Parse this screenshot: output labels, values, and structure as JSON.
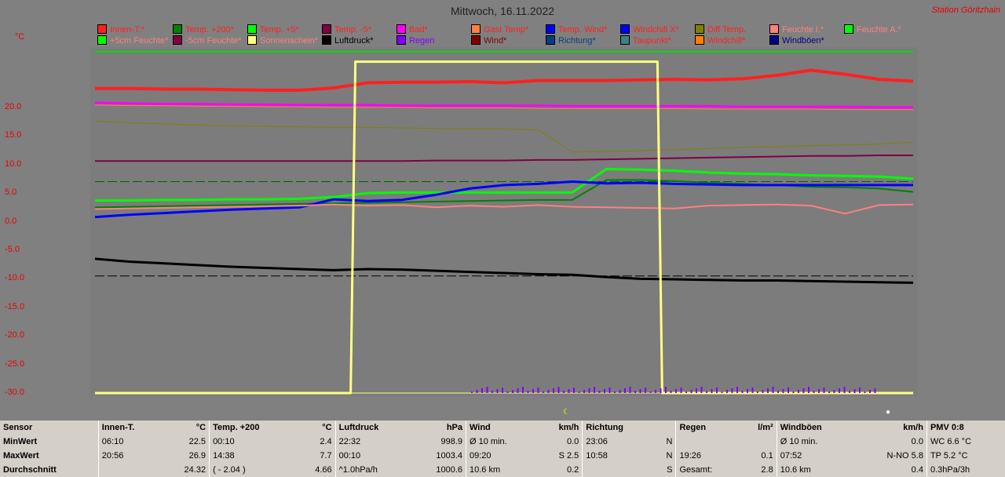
{
  "header": {
    "title": "Mittwoch, 16.11.2022",
    "station": "Station Göritzhain",
    "unit": "°C"
  },
  "legend": [
    {
      "label": "Innen-T.*",
      "color": "#ff2020",
      "text_color": "#ff2020"
    },
    {
      "label": "Temp. +200*",
      "color": "#008000",
      "text_color": "#ff2020"
    },
    {
      "label": "Temp. +5*",
      "color": "#00ff00",
      "text_color": "#ff2020"
    },
    {
      "label": "Temp. -5*",
      "color": "#800040",
      "text_color": "#ff2020"
    },
    {
      "label": "Bad*",
      "color": "#ff00ff",
      "text_color": "#ff2020"
    },
    {
      "label": "Gast Temp*",
      "color": "#ff8040",
      "text_color": "#ff2020"
    },
    {
      "label": "Temp. Wind*",
      "color": "#0000ff",
      "text_color": "#ff2020"
    },
    {
      "label": "Windchill X*",
      "color": "#0000ff",
      "text_color": "#ff2020"
    },
    {
      "label": "Diff Temp.",
      "color": "#808000",
      "text_color": "#ff2020"
    },
    {
      "label": "Feuchte I.*",
      "color": "#ff8080",
      "text_color": "#ff8080"
    },
    {
      "label": "Feuchte A.*",
      "color": "#00ff00",
      "text_color": "#ff8080"
    },
    {
      "label": "+5cm Feuchte*",
      "color": "#00ff00",
      "text_color": "#ff8080"
    },
    {
      "label": "-5cm Feuchte*",
      "color": "#800040",
      "text_color": "#ff8080"
    },
    {
      "label": "Sonnenschein*",
      "color": "#ffff80",
      "text_color": "#ff8080"
    },
    {
      "label": "Luftdruck*",
      "color": "#000000",
      "text_color": "#000000"
    },
    {
      "label": "Regen",
      "color": "#8000ff",
      "text_color": "#8000ff"
    },
    {
      "label": "Wind*",
      "color": "#800000",
      "text_color": "#800000"
    },
    {
      "label": "Richtung*",
      "color": "#004080",
      "text_color": "#004080"
    },
    {
      "label": "Taupunkt*",
      "color": "#408080",
      "text_color": "#ff2020"
    },
    {
      "label": "Windchill*",
      "color": "#ff8000",
      "text_color": "#ff2020"
    },
    {
      "label": "Windböen*",
      "color": "#000080",
      "text_color": "#000080"
    }
  ],
  "chart_data": {
    "type": "line",
    "title": "Mittwoch, 16.11.2022",
    "ylabel": "°C",
    "ylim": [
      -30,
      30
    ],
    "yticks": [
      "20.0",
      "15.0",
      "10.0",
      "5.0",
      "0.0",
      "-5.0",
      "-10.0",
      "-15.0",
      "-20.0",
      "-25.0",
      "-30.0"
    ],
    "x": [
      0,
      1,
      2,
      3,
      4,
      5,
      6,
      7,
      8,
      9,
      10,
      11,
      12,
      13,
      14,
      15,
      16,
      17,
      18,
      19,
      20,
      21,
      22,
      23,
      24
    ],
    "series": [
      {
        "name": "Innen-T.*",
        "color": "#ff2020",
        "width": 4,
        "values": [
          23.3,
          23.3,
          23.2,
          23.2,
          23.1,
          23.0,
          23.0,
          23.4,
          24.3,
          24.4,
          24.4,
          24.5,
          24.3,
          24.7,
          24.7,
          24.7,
          24.8,
          24.9,
          24.8,
          25.0,
          25.6,
          26.5,
          25.8,
          24.9,
          24.6
        ]
      },
      {
        "name": "Bad*",
        "color": "#ff00ff",
        "width": 3,
        "values": [
          20.8,
          20.7,
          20.6,
          20.6,
          20.5,
          20.5,
          20.4,
          20.4,
          20.4,
          20.3,
          20.3,
          20.3,
          20.3,
          20.3,
          20.2,
          20.2,
          20.2,
          20.2,
          20.2,
          20.1,
          20.1,
          20.1,
          20.1,
          20.0,
          20.0
        ]
      },
      {
        "name": "Gast Temp*",
        "color": "#ff8040",
        "width": 1,
        "values": [
          20.4,
          20.3,
          20.3,
          20.2,
          20.2,
          20.1,
          20.1,
          20.0,
          20.0,
          20.0,
          19.9,
          19.9,
          19.9,
          19.8,
          19.8,
          19.8,
          19.8,
          19.8,
          19.7,
          19.7,
          19.7,
          19.7,
          19.6,
          19.6,
          19.6
        ]
      },
      {
        "name": "Diff Temp.",
        "color": "#808000",
        "width": 1,
        "values": [
          17.6,
          17.3,
          17.1,
          16.9,
          16.8,
          16.7,
          16.6,
          16.5,
          16.5,
          16.4,
          16.3,
          16.2,
          16.2,
          16.1,
          12.2,
          12.3,
          12.4,
          12.6,
          12.8,
          13.0,
          13.1,
          13.3,
          13.4,
          13.6,
          13.9
        ]
      },
      {
        "name": "Temp. -5*",
        "color": "#800040",
        "width": 2,
        "values": [
          10.6,
          10.6,
          10.6,
          10.6,
          10.6,
          10.6,
          10.6,
          10.6,
          10.6,
          10.6,
          10.7,
          10.7,
          10.7,
          10.8,
          10.8,
          10.9,
          11.0,
          11.1,
          11.2,
          11.3,
          11.4,
          11.5,
          11.5,
          11.6,
          11.6
        ]
      },
      {
        "name": "Temp. +5*",
        "color": "#00ff00",
        "width": 3,
        "values": [
          3.7,
          3.7,
          3.8,
          3.8,
          3.9,
          3.9,
          4.0,
          4.3,
          5.0,
          5.1,
          5.1,
          5.1,
          5.1,
          5.1,
          5.1,
          9.2,
          9.1,
          8.9,
          8.6,
          8.4,
          8.3,
          8.1,
          8.0,
          7.9,
          7.5
        ]
      },
      {
        "name": "Temp. +200*",
        "color": "#008000",
        "width": 2,
        "values": [
          2.5,
          2.6,
          2.7,
          2.8,
          2.9,
          3.0,
          3.1,
          3.2,
          3.3,
          3.4,
          3.5,
          3.6,
          3.7,
          3.8,
          3.8,
          7.3,
          7.3,
          7.1,
          6.8,
          6.6,
          6.4,
          6.1,
          6.0,
          5.8,
          5.2
        ]
      },
      {
        "name": "Temp. Wind*",
        "color": "#0000ff",
        "width": 3,
        "values": [
          0.8,
          1.2,
          1.5,
          1.8,
          2.1,
          2.3,
          2.5,
          3.9,
          3.6,
          3.8,
          4.7,
          5.8,
          6.4,
          6.6,
          7.0,
          6.7,
          6.8,
          6.6,
          6.5,
          6.4,
          6.4,
          6.4,
          6.4,
          6.4,
          6.4
        ]
      },
      {
        "name": "Feuchte I.*",
        "color": "#ff8080",
        "width": 2,
        "values": [
          2.2,
          2.3,
          2.4,
          2.5,
          2.6,
          2.7,
          2.8,
          3.0,
          2.8,
          2.9,
          2.5,
          2.8,
          2.6,
          2.9,
          2.6,
          2.5,
          2.4,
          2.3,
          2.8,
          2.9,
          3.0,
          2.8,
          1.4,
          2.9,
          3.0
        ]
      },
      {
        "name": "Luftdruck*",
        "color": "#000000",
        "width": 3,
        "values": [
          -6.5,
          -7.0,
          -7.3,
          -7.6,
          -7.9,
          -8.1,
          -8.3,
          -8.5,
          -8.3,
          -8.4,
          -8.6,
          -8.8,
          -9.0,
          -9.2,
          -9.3,
          -9.7,
          -10.0,
          -10.1,
          -10.2,
          -10.3,
          -10.3,
          -10.4,
          -10.5,
          -10.6,
          -10.7
        ]
      },
      {
        "name": "Sonnenschein*",
        "color": "#ffff80",
        "width": 3,
        "values": [
          -30,
          -30,
          -30,
          -30,
          -30,
          -30,
          -30,
          -30,
          28,
          28,
          28,
          28,
          28,
          28,
          28,
          28,
          28,
          -30,
          -30,
          -30,
          -30,
          -30,
          -30,
          -30,
          -30
        ]
      }
    ],
    "ref_lines": [
      {
        "y": 7.0,
        "color": "#006000"
      },
      {
        "y": -9.5,
        "color": "#000000"
      }
    ]
  },
  "stats": {
    "header": [
      "Sensor",
      "Innen-T.",
      "°C",
      "Temp. +200",
      "°C",
      "Luftdruck",
      "hPa",
      "Wind",
      "km/h",
      "Richtung",
      "",
      "Regen",
      "l/m²",
      "Windböen",
      "km/h",
      "PMV 0:8"
    ],
    "min": [
      "MinWert",
      "06:10",
      "22.5",
      "00:10",
      "2.4",
      "22:32",
      "998.9",
      "Ø 10 min.",
      "0.0",
      "23:06",
      "N",
      "",
      "",
      "Ø 10 min.",
      "0.0",
      "WC 6.6 °C"
    ],
    "max": [
      "MaxWert",
      "20:56",
      "26.9",
      "14:38",
      "7.7",
      "00:10",
      "1003.4",
      "09:20",
      "S 2.5",
      "10:58",
      "N",
      "19:26",
      "0.1",
      "07:52",
      "N-NO 5.8",
      "TP 5.2 °C"
    ],
    "avg": [
      "Durchschnitt",
      "",
      "24.32",
      "( - 2.04 )",
      "4.66",
      "^1.0hPa/h",
      "1000.6",
      "10.6 km",
      "0.2",
      "",
      "S",
      "Gesamt:",
      "2.8",
      "10.6 km",
      "0.4",
      "0.3hPa/3h"
    ]
  }
}
